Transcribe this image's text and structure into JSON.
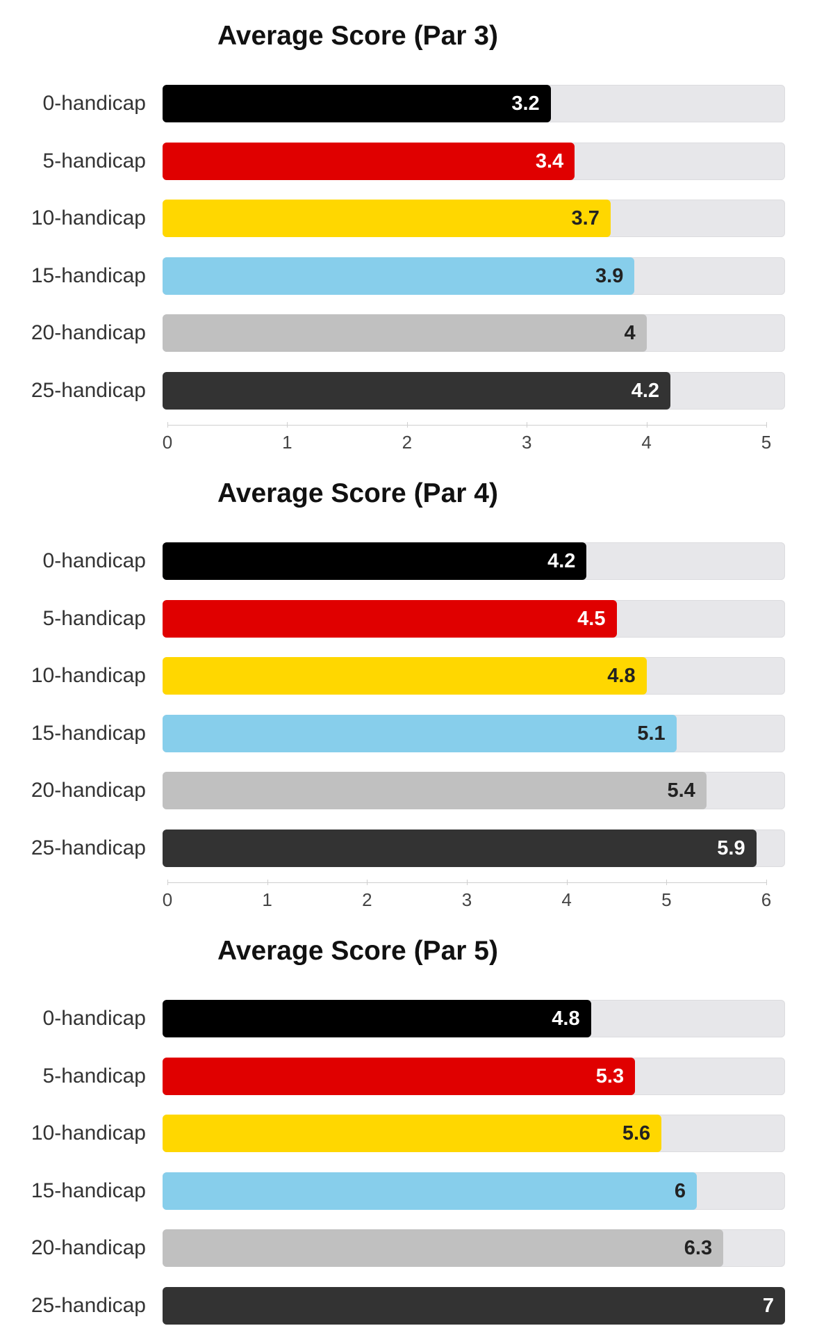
{
  "colors": {
    "track": "#e7e7ea",
    "bars": [
      "#000000",
      "#e00000",
      "#ffd700",
      "#87ceeb",
      "#c0c0c0",
      "#333333"
    ],
    "value_text": [
      "#ffffff",
      "#ffffff",
      "#222222",
      "#222222",
      "#222222",
      "#ffffff"
    ]
  },
  "chart_data": [
    {
      "type": "bar",
      "orientation": "horizontal",
      "title": "Average Score (Par 3)",
      "categories": [
        "0-handicap",
        "5-handicap",
        "10-handicap",
        "15-handicap",
        "20-handicap",
        "25-handicap"
      ],
      "values": [
        3.2,
        3.4,
        3.7,
        3.9,
        4,
        4.2
      ],
      "value_labels": [
        "3.2",
        "3.4",
        "3.7",
        "3.9",
        "4",
        "4.2"
      ],
      "xlim": [
        0,
        5
      ],
      "ticks": [
        0,
        1,
        2,
        3,
        4,
        5
      ],
      "tick_labels": [
        "0",
        "1",
        "2",
        "3",
        "4",
        "5"
      ],
      "grid": false,
      "legend": "none"
    },
    {
      "type": "bar",
      "orientation": "horizontal",
      "title": "Average Score (Par 4)",
      "categories": [
        "0-handicap",
        "5-handicap",
        "10-handicap",
        "15-handicap",
        "20-handicap",
        "25-handicap"
      ],
      "values": [
        4.2,
        4.5,
        4.8,
        5.1,
        5.4,
        5.9
      ],
      "value_labels": [
        "4.2",
        "4.5",
        "4.8",
        "5.1",
        "5.4",
        "5.9"
      ],
      "xlim": [
        0,
        6
      ],
      "ticks": [
        0,
        1,
        2,
        3,
        4,
        5,
        6
      ],
      "tick_labels": [
        "0",
        "1",
        "2",
        "3",
        "4",
        "5",
        "6"
      ],
      "grid": false,
      "legend": "none"
    },
    {
      "type": "bar",
      "orientation": "horizontal",
      "title": "Average Score (Par 5)",
      "categories": [
        "0-handicap",
        "5-handicap",
        "10-handicap",
        "15-handicap",
        "20-handicap",
        "25-handicap"
      ],
      "values": [
        4.8,
        5.3,
        5.6,
        6,
        6.3,
        7
      ],
      "value_labels": [
        "4.8",
        "5.3",
        "5.6",
        "6",
        "6.3",
        "7"
      ],
      "xlim": [
        0,
        7
      ],
      "grid": false,
      "legend": "none"
    }
  ]
}
